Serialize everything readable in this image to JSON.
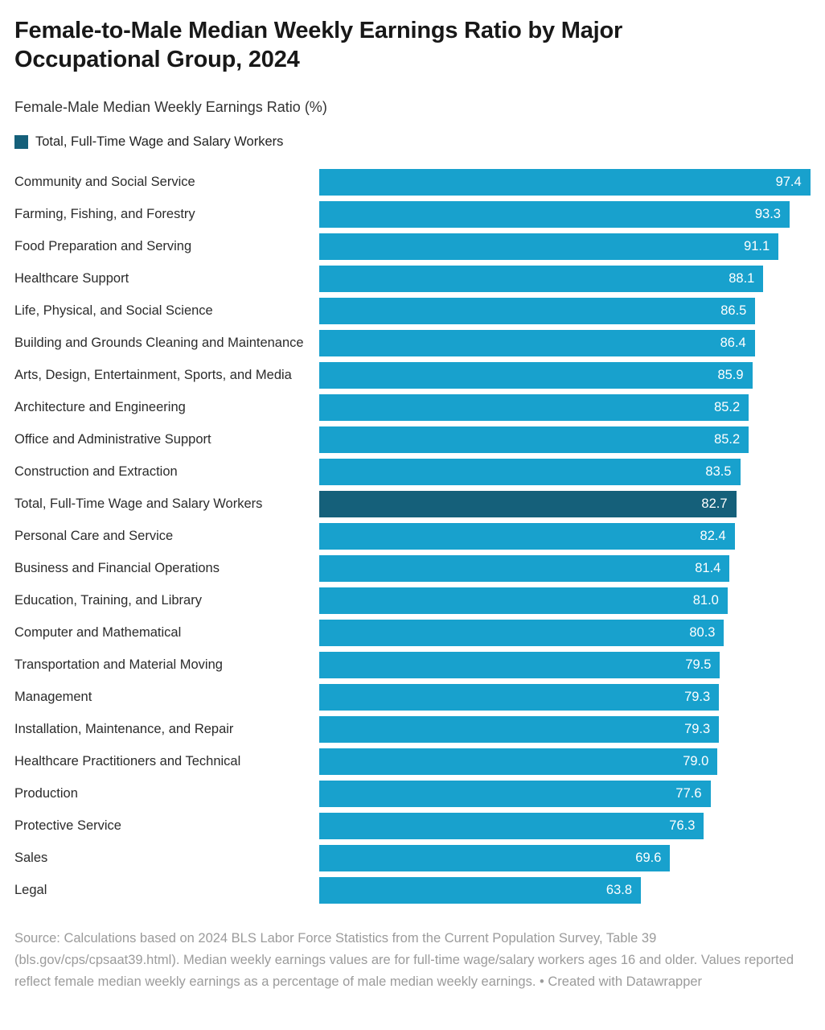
{
  "header": {
    "title": "Female-to-Male Median Weekly Earnings Ratio by Major Occupational Group, 2024",
    "subtitle": "Female-Male Median Weekly Earnings Ratio (%)",
    "legend": {
      "label": "Total, Full-Time Wage and Salary Workers",
      "color": "#15607a"
    }
  },
  "chart_data": {
    "type": "bar",
    "orientation": "horizontal",
    "title": "Female-to-Male Median Weekly Earnings Ratio by Major Occupational Group, 2024",
    "xlabel": "Female-Male Median Weekly Earnings Ratio (%)",
    "ylabel": "",
    "xlim": [
      0,
      100
    ],
    "grid": false,
    "legend_position": "top",
    "value_label_position": "inside-end",
    "categories": [
      "Community and Social Service",
      "Farming, Fishing, and Forestry",
      "Food Preparation and Serving",
      "Healthcare Support",
      "Life, Physical, and Social Science",
      "Building and Grounds Cleaning and Maintenance",
      "Arts, Design, Entertainment, Sports, and Media",
      "Architecture and Engineering",
      "Office and Administrative Support",
      "Construction and Extraction",
      "Total, Full-Time Wage and Salary Workers",
      "Personal Care and Service",
      "Business and Financial Operations",
      "Education, Training, and Library",
      "Computer and Mathematical",
      "Transportation and Material Moving",
      "Management",
      "Installation, Maintenance, and Repair",
      "Healthcare Practitioners and Technical",
      "Production",
      "Protective Service",
      "Sales",
      "Legal"
    ],
    "values": [
      97.4,
      93.3,
      91.1,
      88.1,
      86.5,
      86.4,
      85.9,
      85.2,
      85.2,
      83.5,
      82.7,
      82.4,
      81.4,
      81.0,
      80.3,
      79.5,
      79.3,
      79.3,
      79.0,
      77.6,
      76.3,
      69.6,
      63.8
    ],
    "highlight_category": "Total, Full-Time Wage and Salary Workers",
    "highlight_index": 10,
    "colors": {
      "bar": "#18a1cd",
      "highlight": "#15607a",
      "value_label": "#ffffff"
    }
  },
  "footer": {
    "source_text": "Source: Calculations based on 2024 BLS Labor Force Statistics from the Current Population Survey, Table 39 (bls.gov/cps/cpsaat39.html). Median weekly earnings values are for full-time wage/salary workers ages 16 and older. Values reported reflect female median weekly earnings as a percentage of male median weekly earnings. • Created with Datawrapper"
  }
}
